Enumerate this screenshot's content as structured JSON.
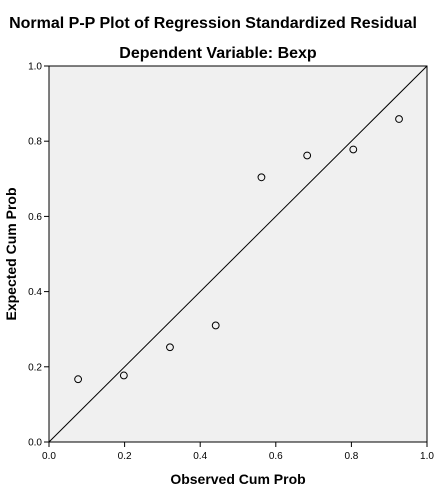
{
  "chart_data": {
    "type": "scatter",
    "title": "Normal P-P Plot of Regression Standardized Residual",
    "subtitle": "Dependent Variable: Bexp",
    "xlabel": "Observed Cum Prob",
    "ylabel": "Expected Cum Prob",
    "xlim": [
      0.0,
      1.0
    ],
    "ylim": [
      0.0,
      1.0
    ],
    "xticks": [
      "0.0",
      "0.2",
      "0.4",
      "0.6",
      "0.8",
      "1.0"
    ],
    "yticks": [
      "0.0",
      "0.2",
      "0.4",
      "0.6",
      "0.8",
      "1.0"
    ],
    "grid": false,
    "plot_background": "#f0f0f0",
    "reference_line": {
      "from": [
        0,
        0
      ],
      "to": [
        1,
        1
      ]
    },
    "points": [
      {
        "x": 0.077,
        "y": 0.167
      },
      {
        "x": 0.198,
        "y": 0.177
      },
      {
        "x": 0.32,
        "y": 0.252
      },
      {
        "x": 0.441,
        "y": 0.31
      },
      {
        "x": 0.562,
        "y": 0.704
      },
      {
        "x": 0.683,
        "y": 0.762
      },
      {
        "x": 0.805,
        "y": 0.778
      },
      {
        "x": 0.926,
        "y": 0.859
      }
    ]
  }
}
